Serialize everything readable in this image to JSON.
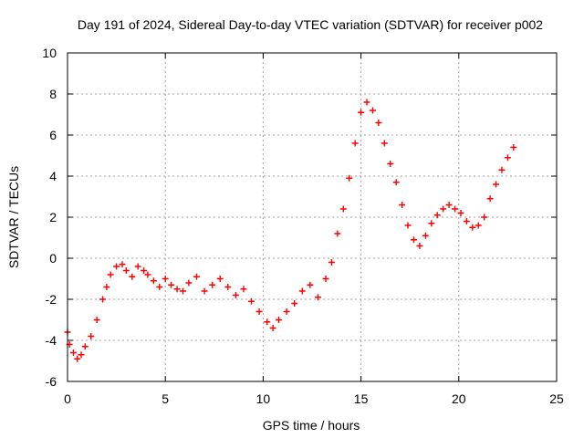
{
  "chart_data": {
    "type": "scatter",
    "title": "Day 191 of 2024, Sidereal Day-to-day VTEC variation (SDTVAR) for receiver p002",
    "xlabel": "GPS time / hours",
    "ylabel": "SDTVAR / TECUs",
    "xlim": [
      0,
      25
    ],
    "ylim": [
      -6,
      10
    ],
    "xticks": [
      0,
      5,
      10,
      15,
      20,
      25
    ],
    "yticks": [
      -6,
      -4,
      -2,
      0,
      2,
      4,
      6,
      8,
      10
    ],
    "grid": true,
    "marker": "+",
    "series": [
      {
        "name": "SDTVAR",
        "color": "#ff0000",
        "x": [
          0.0,
          0.1,
          0.3,
          0.5,
          0.7,
          0.9,
          1.2,
          1.5,
          1.8,
          2.0,
          2.2,
          2.5,
          2.8,
          3.0,
          3.3,
          3.6,
          3.9,
          4.1,
          4.4,
          4.7,
          5.0,
          5.3,
          5.6,
          5.9,
          6.2,
          6.6,
          7.0,
          7.4,
          7.8,
          8.2,
          8.6,
          9.0,
          9.4,
          9.8,
          10.2,
          10.5,
          10.8,
          11.2,
          11.6,
          12.0,
          12.4,
          12.8,
          13.2,
          13.5,
          13.8,
          14.1,
          14.4,
          14.7,
          15.0,
          15.3,
          15.6,
          15.9,
          16.2,
          16.5,
          16.8,
          17.1,
          17.4,
          17.7,
          18.0,
          18.3,
          18.6,
          18.9,
          19.2,
          19.5,
          19.8,
          20.1,
          20.4,
          20.7,
          21.0,
          21.3,
          21.6,
          21.9,
          22.2,
          22.5,
          22.8
        ],
        "y": [
          -3.6,
          -4.2,
          -4.6,
          -4.9,
          -4.7,
          -4.3,
          -3.8,
          -3.0,
          -2.0,
          -1.4,
          -0.8,
          -0.4,
          -0.3,
          -0.6,
          -0.9,
          -0.4,
          -0.6,
          -0.8,
          -1.1,
          -1.4,
          -1.0,
          -1.3,
          -1.5,
          -1.6,
          -1.2,
          -0.9,
          -1.6,
          -1.3,
          -1.0,
          -1.4,
          -1.8,
          -1.5,
          -2.1,
          -2.6,
          -3.1,
          -3.4,
          -3.0,
          -2.6,
          -2.2,
          -1.6,
          -1.3,
          -1.9,
          -1.0,
          -0.2,
          1.2,
          2.4,
          3.9,
          5.6,
          7.1,
          7.6,
          7.2,
          6.6,
          5.6,
          4.6,
          3.7,
          2.6,
          1.6,
          0.9,
          0.6,
          1.1,
          1.7,
          2.1,
          2.4,
          2.6,
          2.4,
          2.2,
          1.8,
          1.5,
          1.6,
          2.0,
          2.9,
          3.6,
          4.3,
          4.9,
          5.4
        ]
      }
    ]
  }
}
